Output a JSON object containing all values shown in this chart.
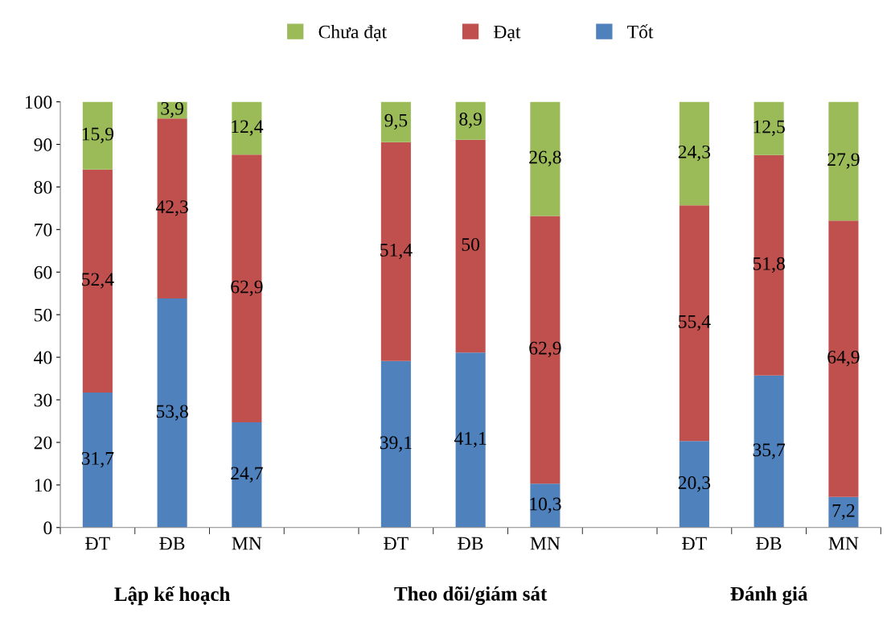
{
  "chart_data": {
    "type": "bar",
    "stacked": true,
    "categories": [
      "ĐT",
      "ĐB",
      "MN",
      null,
      "ĐT",
      "ĐB",
      "MN",
      null,
      "ĐT",
      "ĐB",
      "MN"
    ],
    "series": [
      {
        "name": "Tốt",
        "color": "#4f81bd",
        "values": [
          31.7,
          53.8,
          24.7,
          null,
          39.1,
          41.1,
          10.3,
          null,
          20.3,
          35.7,
          7.2
        ],
        "value_labels": [
          "31,7",
          "53,8",
          "24,7",
          null,
          "39,1",
          "41,1",
          "10,3",
          null,
          "20,3",
          "35,7",
          "7,2"
        ]
      },
      {
        "name": "Đạt",
        "color": "#c0504d",
        "values": [
          52.4,
          42.3,
          62.9,
          null,
          51.4,
          50,
          62.9,
          null,
          55.4,
          51.8,
          64.9
        ],
        "value_labels": [
          "52,4",
          "42,3",
          "62,9",
          null,
          "51,4",
          "50",
          "62,9",
          null,
          "55,4",
          "51,8",
          "64,9"
        ]
      },
      {
        "name": "Chưa đạt",
        "color": "#9bbb59",
        "values": [
          15.9,
          3.9,
          12.4,
          null,
          9.5,
          8.9,
          26.8,
          null,
          24.3,
          12.5,
          27.9
        ],
        "value_labels": [
          "15,9",
          "3,9",
          "12,4",
          null,
          "9,5",
          "8,9",
          "26,8",
          null,
          "24,3",
          "12,5",
          "27,9"
        ]
      }
    ],
    "annotations": [
      "Lập kế hoạch",
      "Theo dõi/giám sát",
      "Đánh giá"
    ],
    "ylim": [
      0,
      100
    ],
    "yticks": [
      0,
      10,
      20,
      30,
      40,
      50,
      60,
      70,
      80,
      90,
      100
    ],
    "grid": false,
    "legend": "top"
  }
}
